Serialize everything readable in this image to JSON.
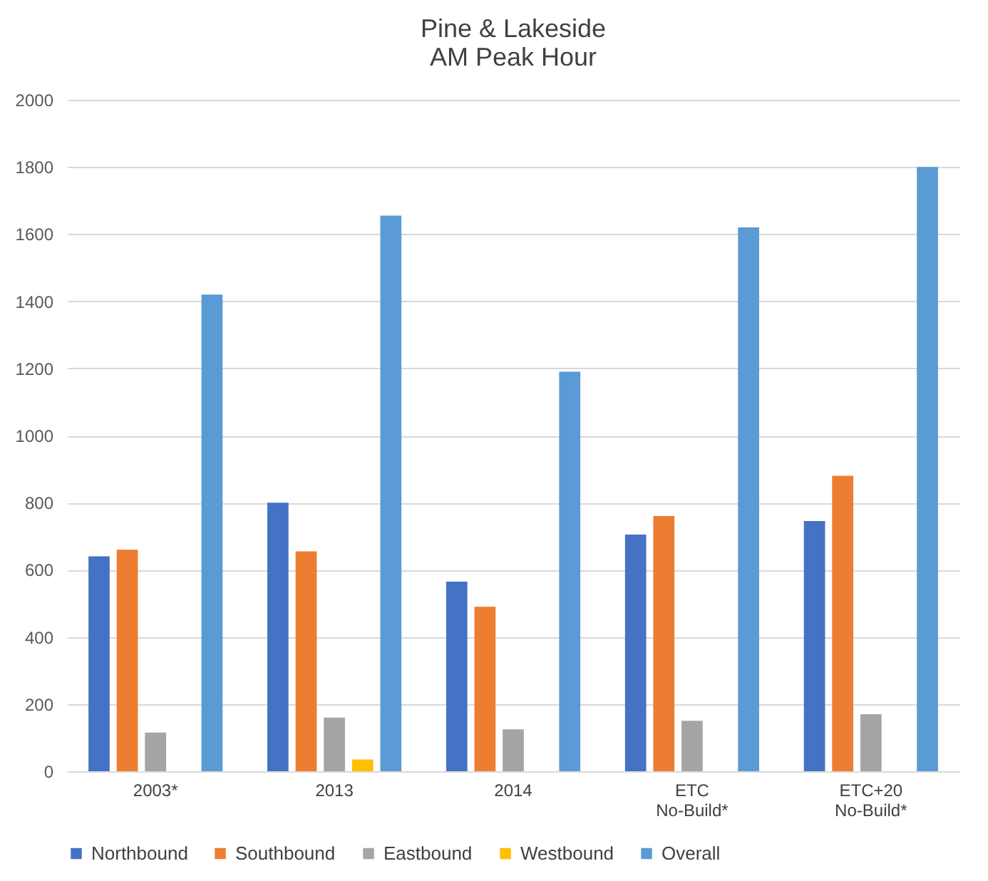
{
  "chart_data": {
    "type": "bar",
    "title": "Pine & Lakeside\nAM Peak Hour",
    "categories": [
      "2003*",
      "2013",
      "2014",
      "ETC\nNo-Build*",
      "ETC+20\nNo-Build*"
    ],
    "series": [
      {
        "name": "Northbound",
        "color": "#4472c4",
        "values": [
          640,
          800,
          565,
          705,
          745
        ]
      },
      {
        "name": "Southbound",
        "color": "#ed7d31",
        "values": [
          660,
          655,
          490,
          760,
          880
        ]
      },
      {
        "name": "Eastbound",
        "color": "#a5a5a5",
        "values": [
          115,
          160,
          125,
          150,
          170
        ]
      },
      {
        "name": "Westbound",
        "color": "#ffc000",
        "values": [
          0,
          35,
          0,
          0,
          0
        ]
      },
      {
        "name": "Overall",
        "color": "#5b9bd5",
        "values": [
          1420,
          1655,
          1190,
          1620,
          1800
        ]
      }
    ],
    "ylim": [
      0,
      2000
    ],
    "yticks": [
      0,
      200,
      400,
      600,
      800,
      1000,
      1200,
      1400,
      1600,
      1800,
      2000
    ],
    "grid": "y",
    "legend": "bottom"
  }
}
